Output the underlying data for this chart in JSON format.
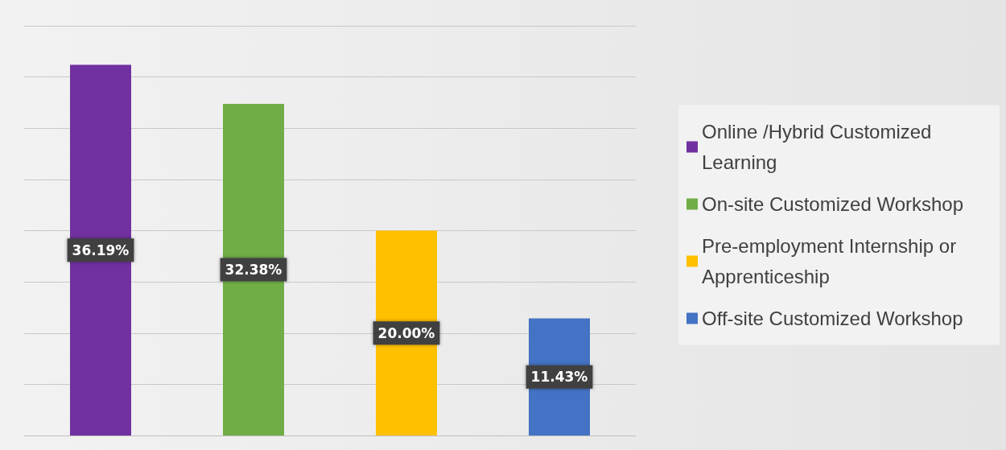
{
  "chart_data": {
    "type": "bar",
    "stacked": true,
    "categories": [
      null,
      null,
      null,
      null
    ],
    "series": [
      {
        "name": "Online /Hybrid Customized Learning",
        "color": "#7030a0",
        "values": [
          36.19,
          null,
          null,
          null
        ],
        "value_labels": [
          "36.19%",
          null,
          null,
          null
        ]
      },
      {
        "name": "On-site Customized Workshop",
        "color": "#70ad47",
        "values": [
          null,
          32.38,
          null,
          null
        ],
        "value_labels": [
          null,
          "32.38%",
          null,
          null
        ]
      },
      {
        "name": "Pre-employment Internship or Apprenticeship",
        "color": "#ffc000",
        "values": [
          null,
          null,
          20.0,
          null
        ],
        "value_labels": [
          null,
          null,
          "20.00%",
          null
        ]
      },
      {
        "name": "Off-site Customized Workshop",
        "color": "#4472c4",
        "values": [
          null,
          null,
          null,
          11.43
        ],
        "value_labels": [
          null,
          null,
          null,
          "11.43%"
        ]
      }
    ],
    "ylim": [
      0,
      40
    ],
    "yticks": [
      {
        "value": 0,
        "label": null
      },
      {
        "value": 5,
        "label": null
      },
      {
        "value": 10,
        "label": null
      },
      {
        "value": 15,
        "label": null
      },
      {
        "value": 20,
        "label": null
      },
      {
        "value": 25,
        "label": null
      },
      {
        "value": 30,
        "label": null
      },
      {
        "value": 35,
        "label": null
      },
      {
        "value": 40,
        "label": null
      }
    ],
    "grid": "y",
    "legend": "right"
  }
}
